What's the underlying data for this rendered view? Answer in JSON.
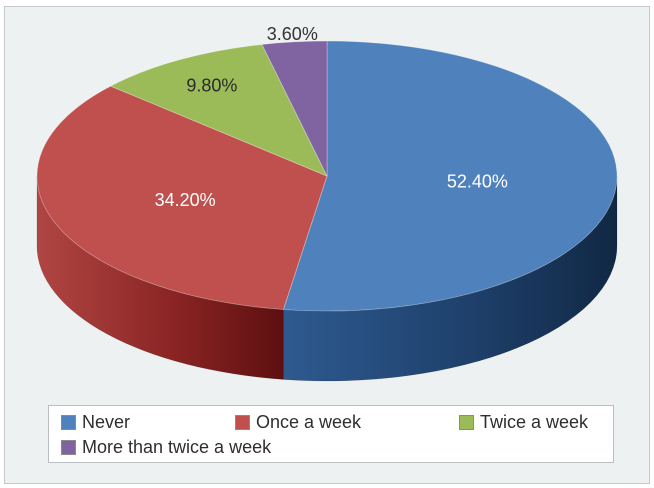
{
  "chart_data": {
    "type": "pie",
    "style": "3d",
    "labels": [
      "Never",
      "Once a week",
      "Twice a week",
      "More than twice a week"
    ],
    "values": [
      52.4,
      34.2,
      9.8,
      3.6
    ],
    "value_labels": [
      "52.40%",
      "34.20%",
      "9.80%",
      "3.60%"
    ],
    "colors": [
      "#4f81bd",
      "#c0504d",
      "#9bbb59",
      "#8064a2"
    ],
    "legend_position": "bottom"
  }
}
